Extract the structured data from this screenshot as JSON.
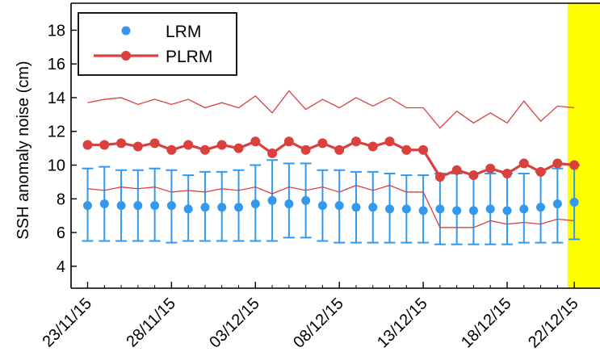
{
  "chart_data": {
    "type": "line",
    "ylabel": "SSH anomaly noise (cm)",
    "xlabel": "",
    "ylim": [
      2.7,
      19.6
    ],
    "yticks": [
      4,
      6,
      8,
      10,
      12,
      14,
      16,
      18
    ],
    "x_tick_labels": [
      "23/11/15",
      "28/11/15",
      "03/12/15",
      "08/12/15",
      "13/12/15",
      "18/12/15",
      "22/12/15"
    ],
    "x_tick_index": [
      0,
      5,
      10,
      15,
      20,
      25,
      29
    ],
    "legend": {
      "position": "top-left",
      "entries": [
        "LRM",
        "PLRM"
      ]
    },
    "highlight": {
      "color": "#ffff00",
      "from_index": 28.6,
      "to_index": 30.6
    },
    "series": [
      {
        "name": "LRM",
        "style": "points-with-errorbars",
        "color": "#3399ee",
        "x_index": [
          0,
          1,
          2,
          3,
          4,
          5,
          6,
          7,
          8,
          9,
          10,
          11,
          12,
          13,
          14,
          15,
          16,
          17,
          18,
          19,
          20,
          21,
          22,
          23,
          24,
          25,
          26,
          27,
          28,
          29
        ],
        "values": [
          7.6,
          7.7,
          7.6,
          7.6,
          7.6,
          7.6,
          7.4,
          7.5,
          7.5,
          7.5,
          7.7,
          7.9,
          7.7,
          7.9,
          7.6,
          7.6,
          7.5,
          7.5,
          7.4,
          7.4,
          7.3,
          7.4,
          7.3,
          7.3,
          7.4,
          7.3,
          7.4,
          7.5,
          7.7,
          7.8
        ],
        "err_low": [
          5.5,
          5.5,
          5.5,
          5.5,
          5.5,
          5.4,
          5.5,
          5.5,
          5.5,
          5.5,
          5.5,
          5.5,
          5.7,
          5.7,
          5.5,
          5.4,
          5.4,
          5.4,
          5.4,
          5.4,
          5.4,
          5.3,
          5.3,
          5.3,
          5.3,
          5.3,
          5.4,
          5.4,
          5.4,
          5.6
        ],
        "err_high": [
          9.8,
          9.9,
          9.7,
          9.7,
          9.8,
          9.7,
          9.4,
          9.6,
          9.6,
          9.7,
          10.0,
          10.3,
          10.1,
          10.1,
          9.7,
          9.7,
          9.6,
          9.6,
          9.5,
          9.4,
          9.4,
          9.5,
          9.5,
          9.5,
          9.5,
          9.5,
          9.5,
          9.6,
          9.8,
          10.0
        ]
      },
      {
        "name": "PLRM",
        "style": "line-markers",
        "color": "#d9413f",
        "x_index": [
          0,
          1,
          2,
          3,
          4,
          5,
          6,
          7,
          8,
          9,
          10,
          11,
          12,
          13,
          14,
          15,
          16,
          17,
          18,
          19,
          20,
          21,
          22,
          23,
          24,
          25,
          26,
          27,
          28,
          29
        ],
        "values": [
          11.2,
          11.2,
          11.3,
          11.1,
          11.3,
          10.9,
          11.2,
          10.9,
          11.2,
          11.0,
          11.4,
          10.7,
          11.4,
          10.9,
          11.3,
          10.9,
          11.4,
          11.1,
          11.4,
          10.9,
          10.9,
          9.3,
          9.7,
          9.4,
          9.8,
          9.5,
          10.1,
          9.6,
          10.1,
          10.0
        ]
      },
      {
        "style": "thin-line",
        "color": "#d9413f",
        "x_index": [
          0,
          1,
          2,
          3,
          4,
          5,
          6,
          7,
          8,
          9,
          10,
          11,
          12,
          13,
          14,
          15,
          16,
          17,
          18,
          19,
          20,
          21,
          22,
          23,
          24,
          25,
          26,
          27,
          28,
          29
        ],
        "values": [
          13.7,
          13.9,
          14.0,
          13.6,
          13.9,
          13.6,
          13.9,
          13.4,
          13.7,
          13.4,
          14.1,
          13.1,
          14.4,
          13.3,
          13.9,
          13.4,
          14.0,
          13.5,
          14.0,
          13.4,
          13.4,
          12.2,
          13.2,
          12.5,
          13.1,
          12.5,
          13.8,
          12.6,
          13.5,
          13.4
        ]
      },
      {
        "style": "thin-line",
        "color": "#d9413f",
        "x_index": [
          0,
          1,
          2,
          3,
          4,
          5,
          6,
          7,
          8,
          9,
          10,
          11,
          12,
          13,
          14,
          15,
          16,
          17,
          18,
          19,
          20,
          21,
          22,
          23,
          24,
          25,
          26,
          27,
          28,
          29
        ],
        "values": [
          8.6,
          8.5,
          8.7,
          8.6,
          8.7,
          8.4,
          8.5,
          8.4,
          8.6,
          8.5,
          8.7,
          8.3,
          8.7,
          8.5,
          8.7,
          8.4,
          8.8,
          8.5,
          8.8,
          8.4,
          8.4,
          6.3,
          6.3,
          6.3,
          6.7,
          6.5,
          6.6,
          6.5,
          6.8,
          6.7
        ]
      }
    ]
  }
}
